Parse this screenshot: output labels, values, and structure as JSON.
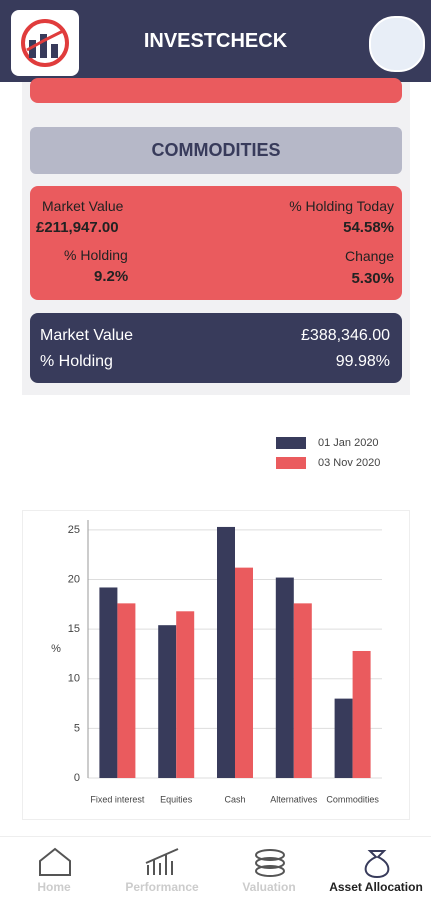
{
  "header": {
    "title": "INVESTCHECK"
  },
  "section": {
    "title": "COMMODITIES"
  },
  "card": {
    "market_value_label": "Market Value",
    "market_value": "£211,947.00",
    "holding_today_label": "% Holding Today",
    "holding_today": "54.58%",
    "holding_label": "% Holding",
    "holding": "9.2%",
    "change_label": "Change",
    "change": "5.30%"
  },
  "total": {
    "market_value_label": "Market Value",
    "market_value": "£388,346.00",
    "holding_label": "% Holding",
    "holding": "99.98%"
  },
  "chart_data": {
    "type": "bar",
    "y_label": "%",
    "categories": [
      "Fixed interest",
      "Equities",
      "Cash",
      "Alternatives",
      "Commodities"
    ],
    "series": [
      {
        "name": "01 Jan 2020",
        "color": "#383b5b",
        "values": [
          19.2,
          15.4,
          25.3,
          20.2,
          8.0
        ]
      },
      {
        "name": "03 Nov 2020",
        "color": "#ea5b5e",
        "values": [
          17.6,
          16.8,
          21.2,
          17.6,
          12.8
        ]
      }
    ],
    "ylim": [
      0,
      26
    ],
    "yticks": [
      0,
      5,
      10,
      15,
      20,
      25
    ],
    "grid": true
  },
  "nav": {
    "items": [
      "Home",
      "Performance",
      "Valuation",
      "Asset Allocation"
    ]
  }
}
